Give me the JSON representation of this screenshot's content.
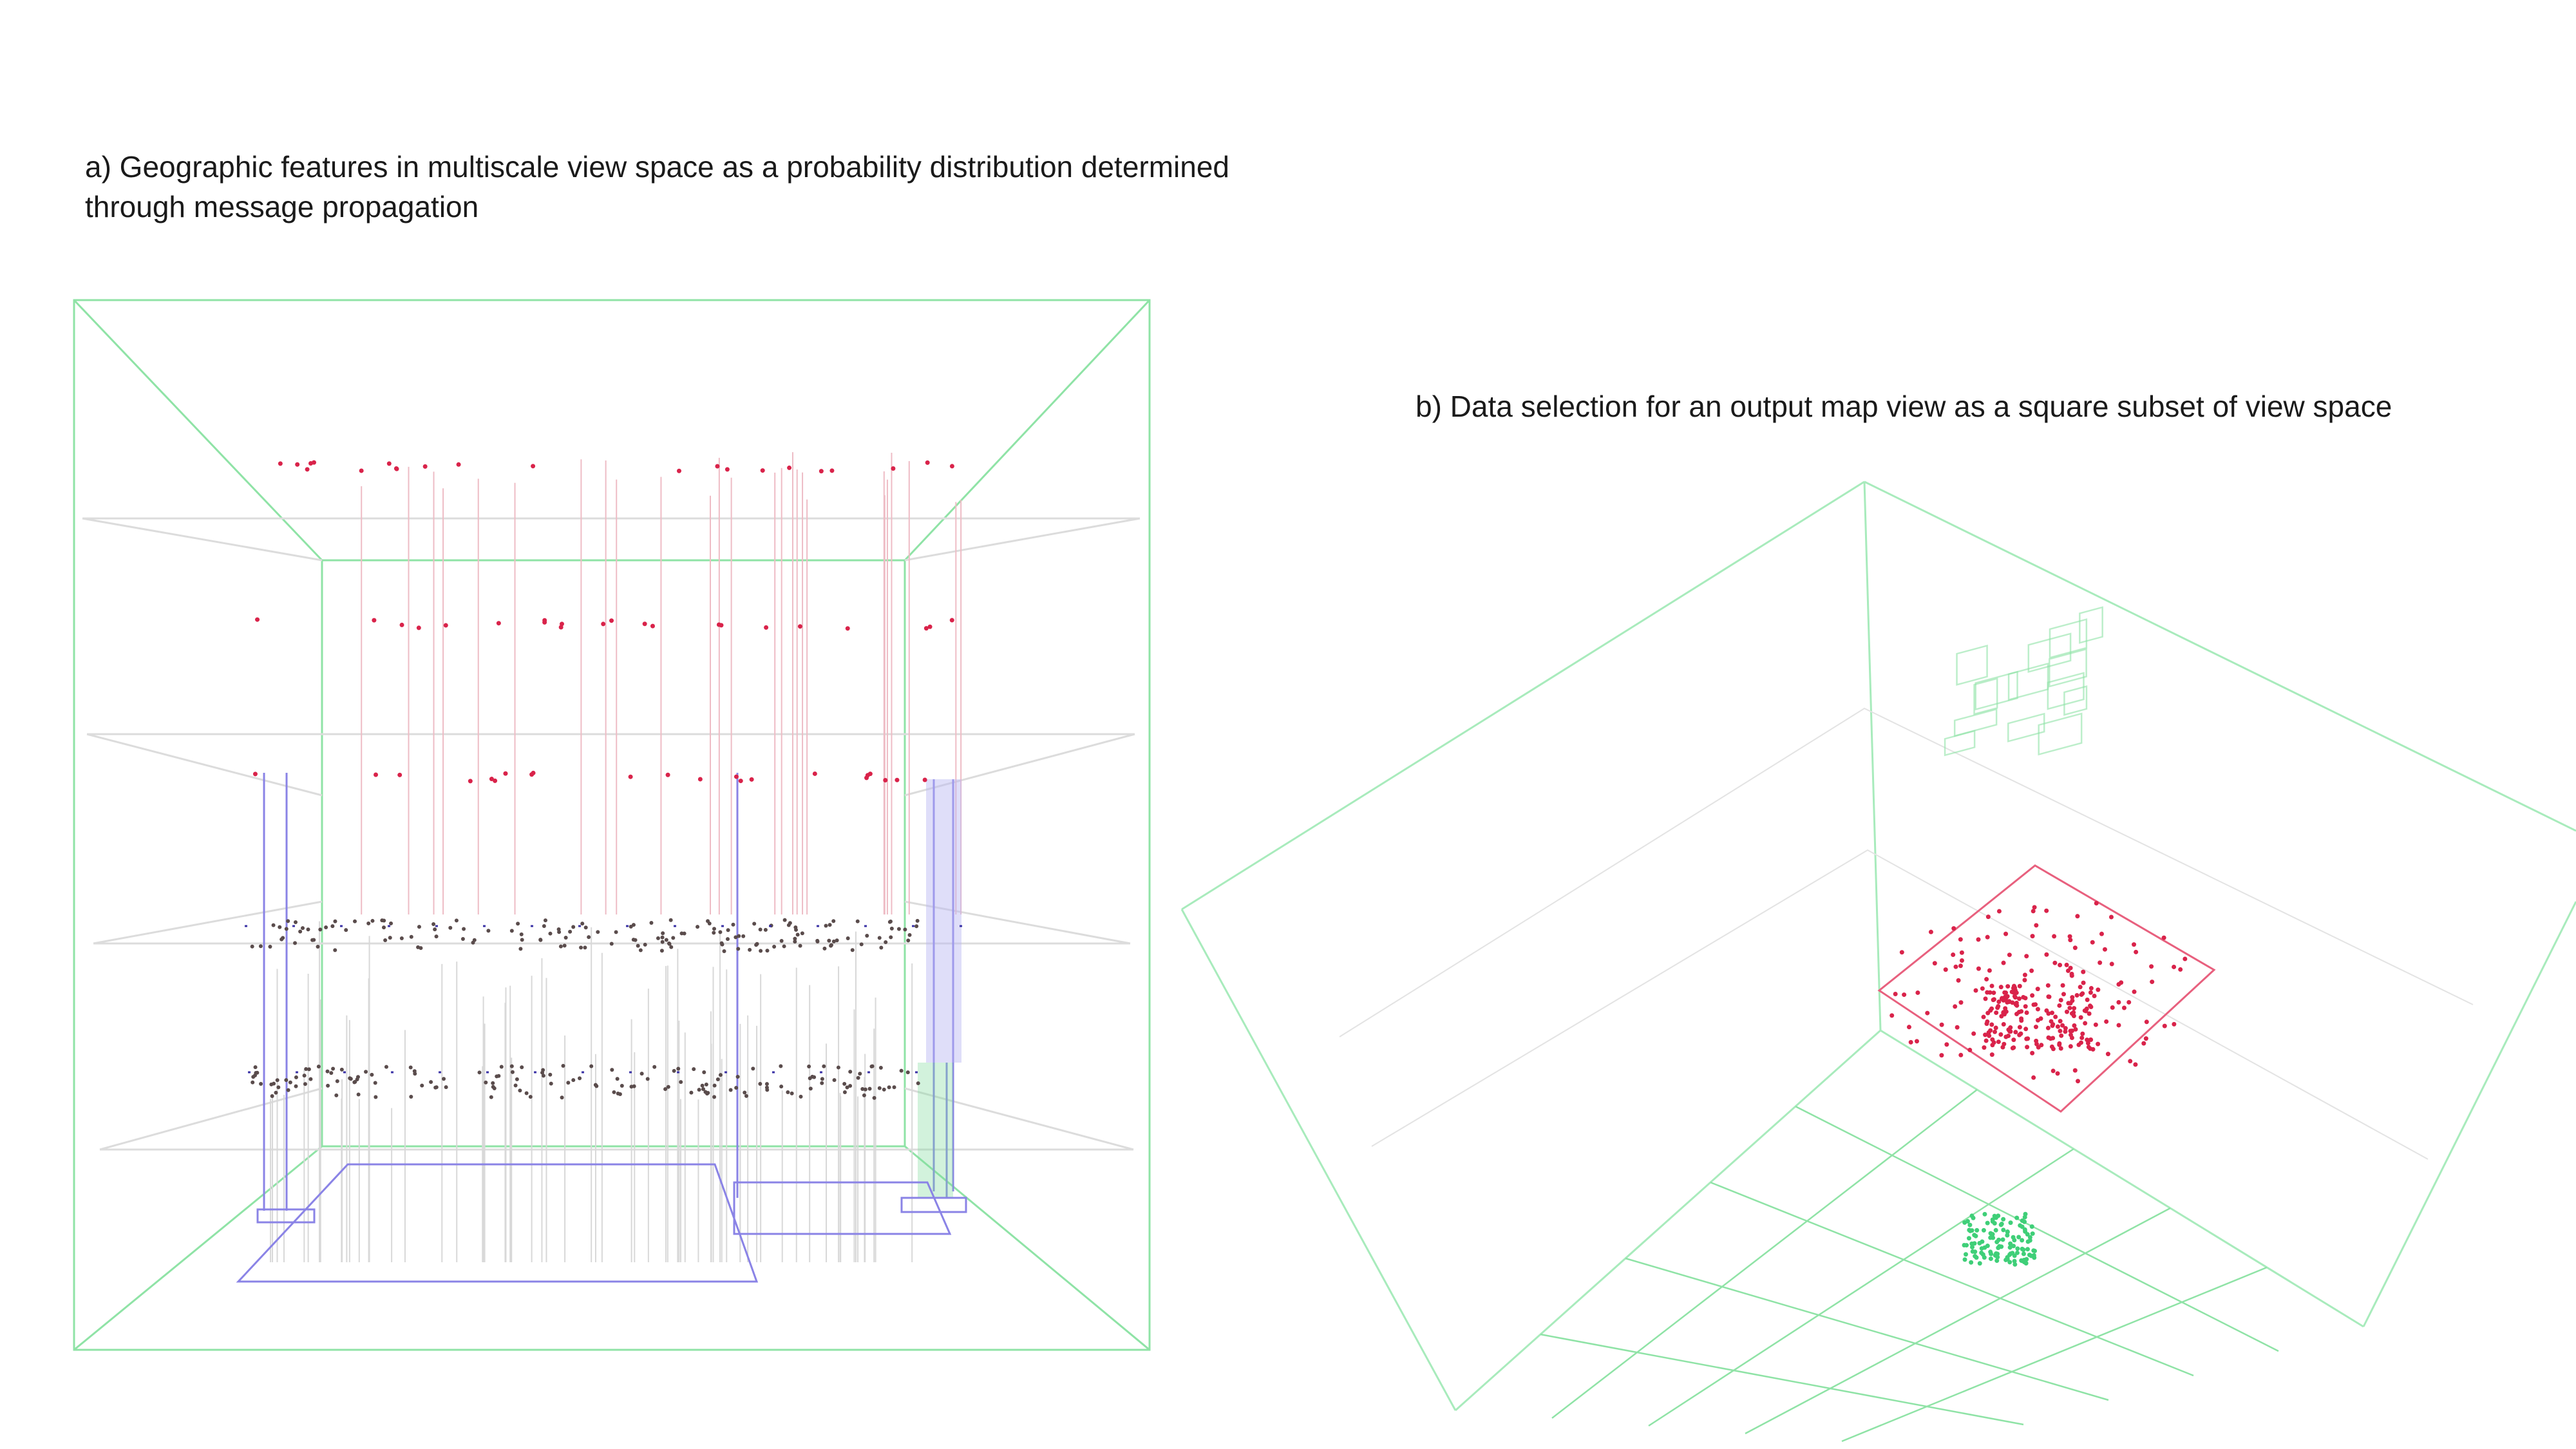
{
  "panel_a": {
    "caption": "a) Geographic features in multiscale view space as a probability distribution determined through message propagation"
  },
  "panel_b": {
    "caption": "b) Data selection for an output map view as a square subset of view space"
  },
  "colors": {
    "frame": "#8fe3a6",
    "frame_light": "#c9f0d4",
    "grid": "#dcdcdc",
    "red_points": "#d9234a",
    "blue_lines": "#8a83e6",
    "dark_points": "#4a4040",
    "selection_square": "#e8607e",
    "cluster_green": "#3fcf78"
  }
}
